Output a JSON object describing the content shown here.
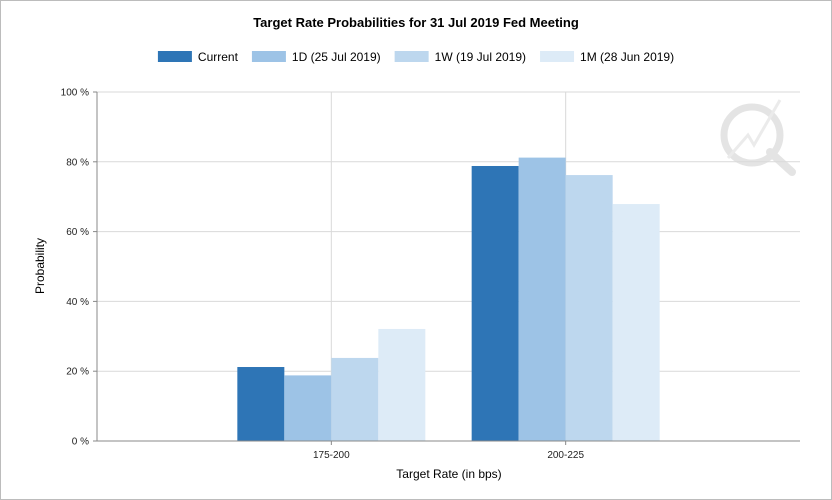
{
  "chart_data": {
    "type": "bar",
    "title": "Target Rate Probabilities for 31 Jul 2019 Fed Meeting",
    "xlabel": "Target Rate (in bps)",
    "ylabel": "Probability",
    "categories": [
      "175-200",
      "200-225"
    ],
    "ylim": [
      0,
      100
    ],
    "yticks": [
      0,
      20,
      40,
      60,
      80,
      100
    ],
    "ytick_labels": [
      "0 %",
      "20 %",
      "40 %",
      "60 %",
      "80 %",
      "100 %"
    ],
    "grid": true,
    "legend_position": "top",
    "series": [
      {
        "name": "Current",
        "color": "#2e75b6",
        "values": [
          21.2,
          78.8
        ]
      },
      {
        "name": "1D (25 Jul 2019)",
        "color": "#9dc3e6",
        "values": [
          18.8,
          81.2
        ]
      },
      {
        "name": "1W (19 Jul 2019)",
        "color": "#bdd7ee",
        "values": [
          23.8,
          76.2
        ]
      },
      {
        "name": "1M (28 Jun 2019)",
        "color": "#ddebf7",
        "values": [
          32.1,
          67.9
        ]
      }
    ]
  }
}
